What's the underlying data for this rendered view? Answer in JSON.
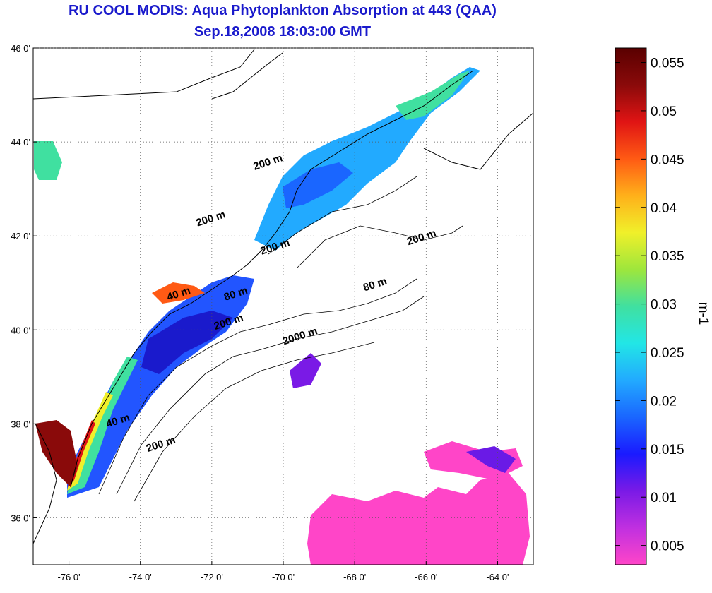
{
  "title_line1": "RU COOL MODIS: Aqua Phytoplankton Absorption at 443 (QAA)",
  "title_line2": "Sep.18,2008 18:03:00 GMT",
  "map": {
    "lon_range": [
      -77,
      -63
    ],
    "lat_range": [
      35,
      46
    ],
    "lon_ticks": [
      {
        "value": -76,
        "label": "-76 0'"
      },
      {
        "value": -74,
        "label": "-74 0'"
      },
      {
        "value": -72,
        "label": "-72 0'"
      },
      {
        "value": -70,
        "label": "-70 0'"
      },
      {
        "value": -68,
        "label": "-68 0'"
      },
      {
        "value": -66,
        "label": "-66 0'"
      },
      {
        "value": -64,
        "label": "-64 0'"
      }
    ],
    "lat_ticks": [
      {
        "value": 36,
        "label": "36 0'"
      },
      {
        "value": 38,
        "label": "38 0'"
      },
      {
        "value": 40,
        "label": "40 0'"
      },
      {
        "value": 42,
        "label": "42 0'"
      },
      {
        "value": 44,
        "label": "44 0'"
      },
      {
        "value": 46,
        "label": "46 0'"
      }
    ],
    "grid": "dotted",
    "contour_labels": [
      {
        "text": "200 m",
        "lon": -72.0,
        "lat": 42.3
      },
      {
        "text": "200 m",
        "lon": -71.5,
        "lat": 40.1
      },
      {
        "text": "200 m",
        "lon": -70.4,
        "lat": 43.5
      },
      {
        "text": "200 m",
        "lon": -70.2,
        "lat": 41.7
      },
      {
        "text": "200 m",
        "lon": -66.1,
        "lat": 41.9
      },
      {
        "text": "80 m",
        "lon": -71.3,
        "lat": 40.7
      },
      {
        "text": "80 m",
        "lon": -67.4,
        "lat": 40.9
      },
      {
        "text": "40 m",
        "lon": -72.9,
        "lat": 40.7
      },
      {
        "text": "40 m",
        "lon": -74.6,
        "lat": 38.0
      },
      {
        "text": "200 m",
        "lon": -73.4,
        "lat": 37.5
      },
      {
        "text": "2000 m",
        "lon": -69.5,
        "lat": 39.8
      }
    ]
  },
  "colorbar": {
    "unit_label": "m-1",
    "range": [
      0.003,
      0.0565
    ],
    "ticks": [
      {
        "value": 0.005,
        "label": "0.005"
      },
      {
        "value": 0.01,
        "label": "0.01"
      },
      {
        "value": 0.015,
        "label": "0.015"
      },
      {
        "value": 0.02,
        "label": "0.02"
      },
      {
        "value": 0.025,
        "label": "0.025"
      },
      {
        "value": 0.03,
        "label": "0.03"
      },
      {
        "value": 0.035,
        "label": "0.035"
      },
      {
        "value": 0.04,
        "label": "0.04"
      },
      {
        "value": 0.045,
        "label": "0.045"
      },
      {
        "value": 0.05,
        "label": "0.05"
      },
      {
        "value": 0.055,
        "label": "0.055"
      }
    ],
    "colors": [
      "#ff45c8",
      "#c030e0",
      "#7a1ae6",
      "#1a1aff",
      "#1a66ff",
      "#22aaff",
      "#22e6e6",
      "#40e0a0",
      "#9ee63c",
      "#f0f02a",
      "#ffb01a",
      "#ff5a14",
      "#e01414",
      "#8a0a0a",
      "#5a0000"
    ],
    "land_color": "#ffffff",
    "coast_color": "#000000"
  }
}
